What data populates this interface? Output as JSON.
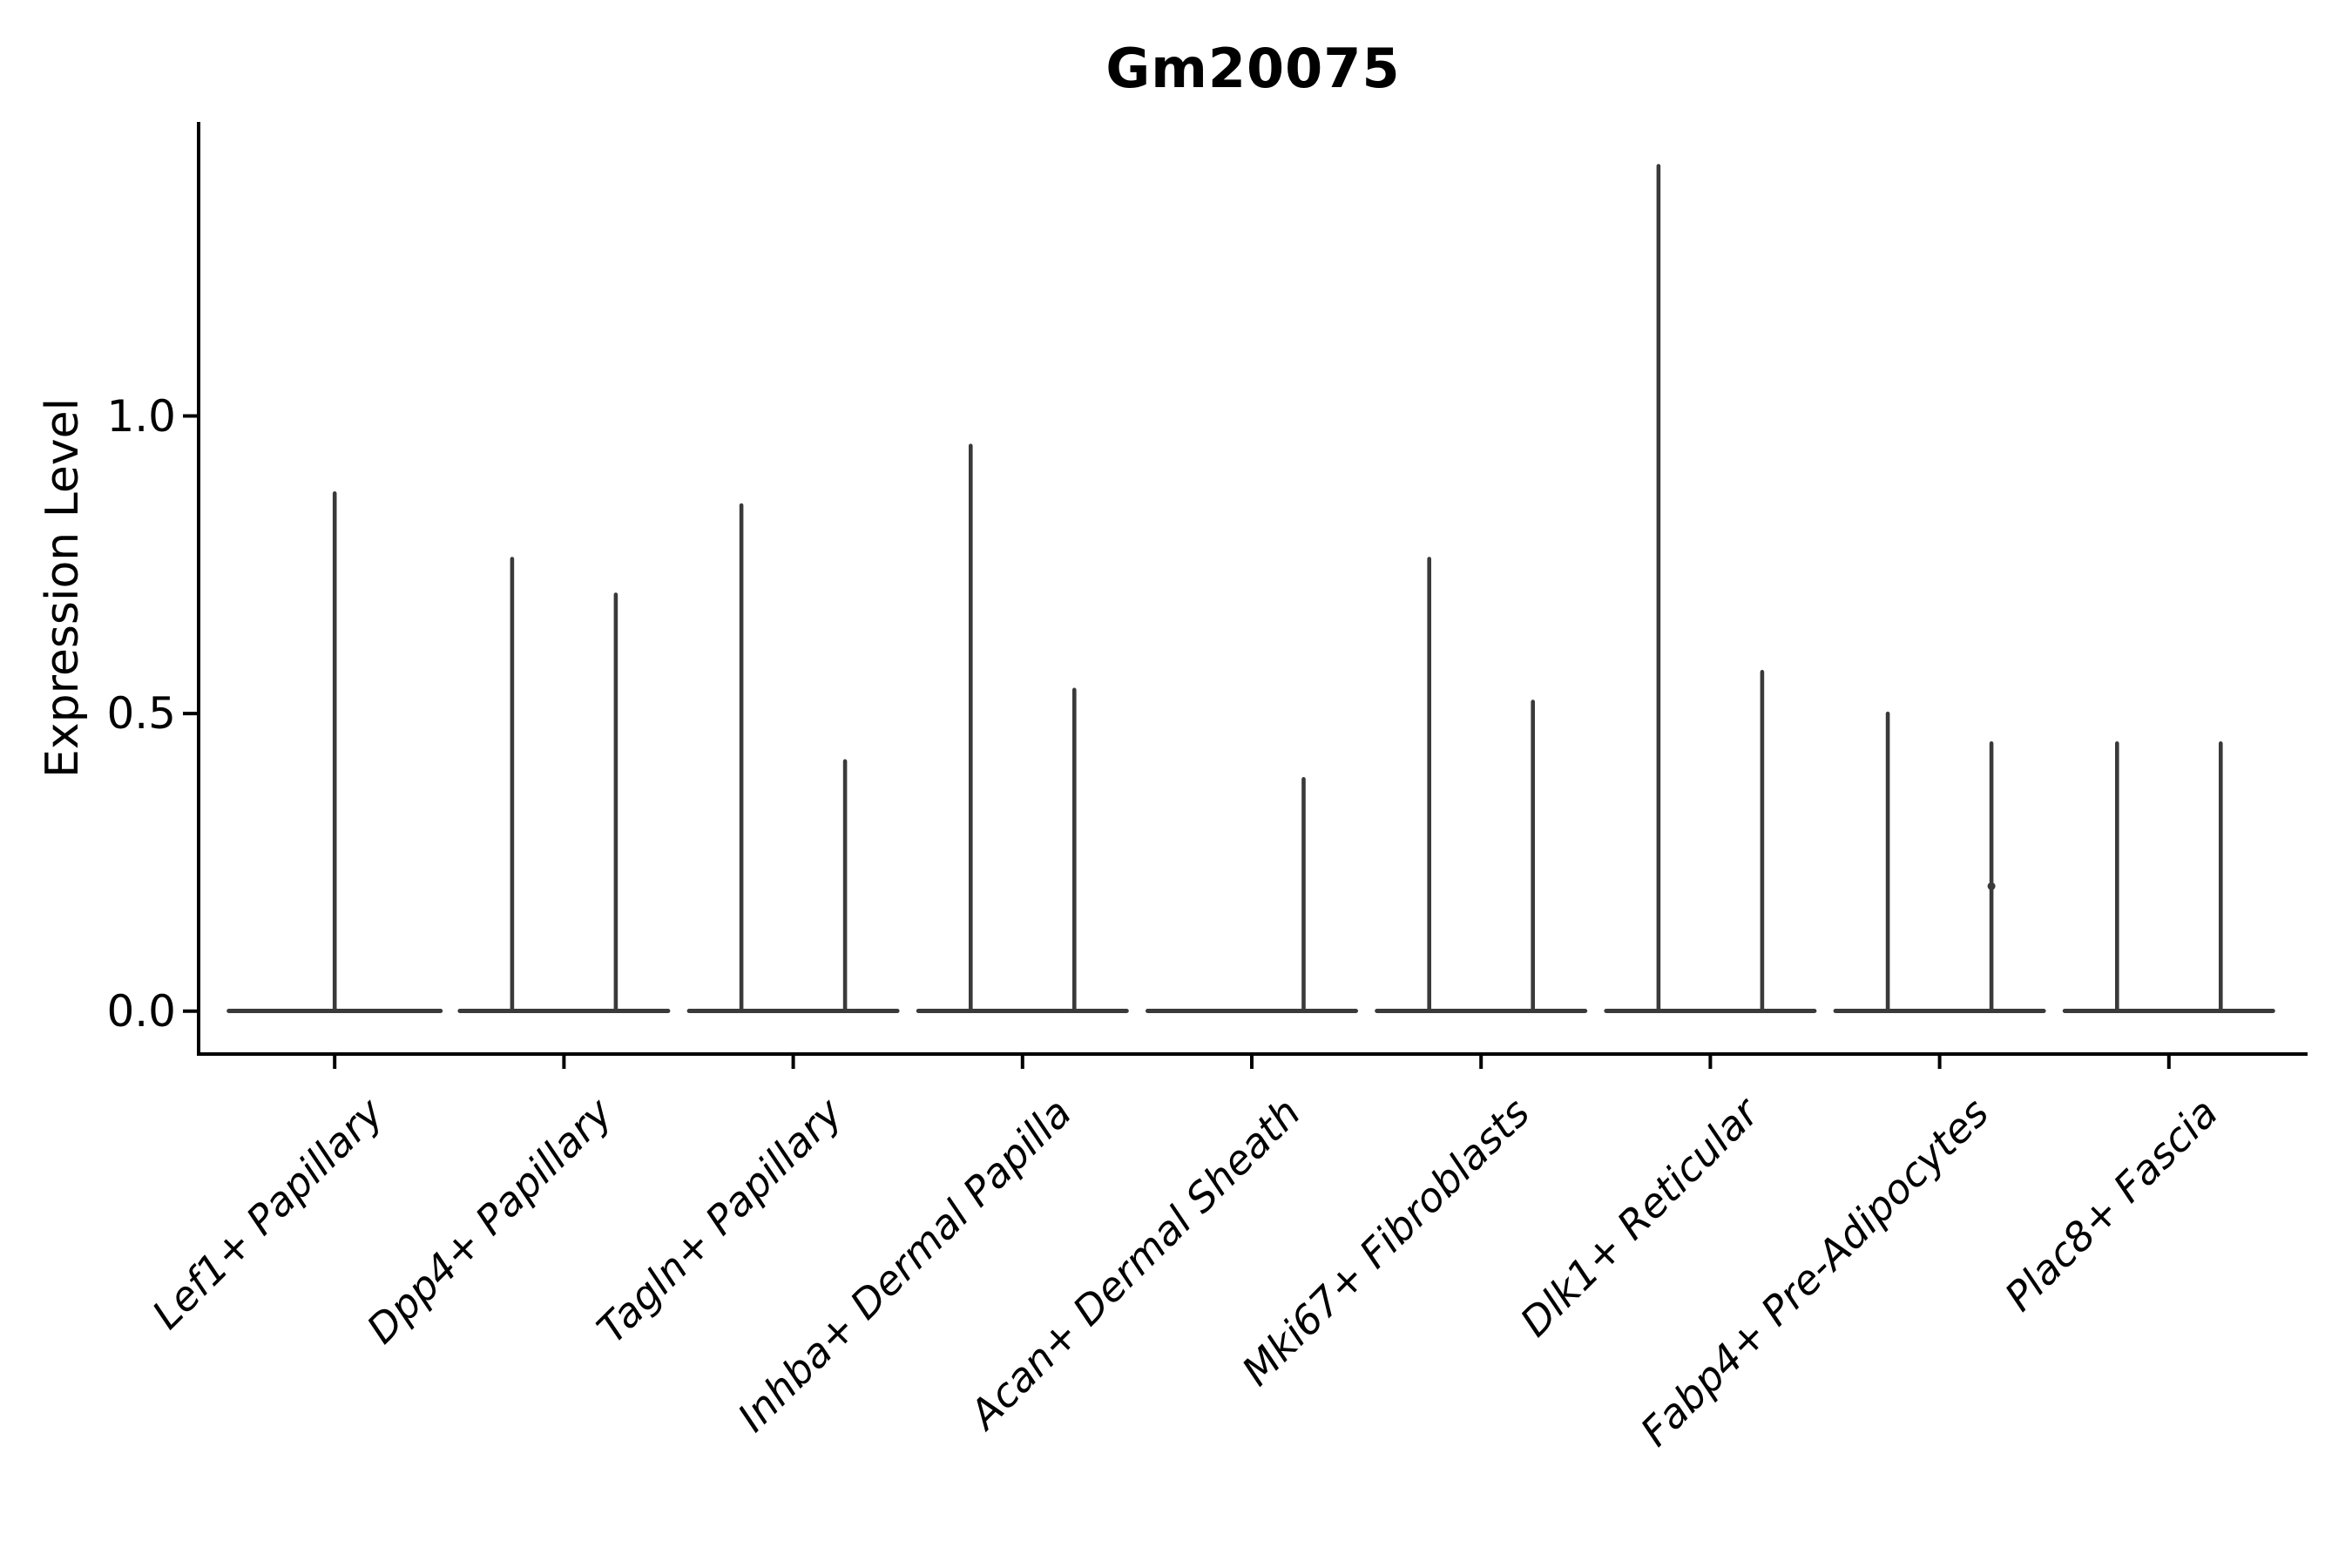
{
  "title": "Gm20075",
  "colors": {
    "axis": "#000000",
    "violin_stroke": "#3a3a3a",
    "background": "#ffffff"
  },
  "chart_data": {
    "type": "violin",
    "title": "Gm20075",
    "ylabel": "Expression Level",
    "xlabel": "",
    "grid": false,
    "legend": "none",
    "ylim": [
      -0.072,
      1.494
    ],
    "yticks": [
      0.0,
      0.5,
      1.0
    ],
    "ytick_labels": [
      "0.0",
      "0.5",
      "1.0"
    ],
    "categories": [
      "Lef1+ Papillary",
      "Dpp4+ Papillary",
      "Tagln+ Papillary",
      "Inhba+ Dermal Papilla",
      "Acan+ Dermal Sheath",
      "Mki67+ Fibroblasts",
      "Dlk1+ Reticular",
      "Fabp4+ Pre-Adipocytes",
      "Plac8+ Fascia"
    ],
    "note": "Each violin is spike-shaped: almost all density sits at expression 0 (wide flat base) with a thin vertical spike up to the maximum expressed value. Categories with two violins show two side-by-side groups; Lef1+ Papillary has a single full-width violin; the first Acan+ Dermal Sheath violin is entirely flat at 0.",
    "violins": [
      {
        "category": "Lef1+ Papillary",
        "groups": [
          {
            "max": 0.87
          }
        ]
      },
      {
        "category": "Dpp4+ Papillary",
        "groups": [
          {
            "max": 0.76
          },
          {
            "max": 0.7
          }
        ]
      },
      {
        "category": "Tagln+ Papillary",
        "groups": [
          {
            "max": 0.85
          },
          {
            "max": 0.42
          }
        ]
      },
      {
        "category": "Inhba+ Dermal Papilla",
        "groups": [
          {
            "max": 0.95
          },
          {
            "max": 0.54
          }
        ]
      },
      {
        "category": "Acan+ Dermal Sheath",
        "groups": [
          {
            "max": 0.0
          },
          {
            "max": 0.39
          }
        ]
      },
      {
        "category": "Mki67+ Fibroblasts",
        "groups": [
          {
            "max": 0.76
          },
          {
            "max": 0.52
          }
        ]
      },
      {
        "category": "Dlk1+ Reticular",
        "groups": [
          {
            "max": 1.42
          },
          {
            "max": 0.57
          }
        ]
      },
      {
        "category": "Fabp4+ Pre-Adipocytes",
        "groups": [
          {
            "max": 0.5
          },
          {
            "max": 0.45
          }
        ]
      },
      {
        "category": "Plac8+ Fascia",
        "groups": [
          {
            "max": 0.45
          },
          {
            "max": 0.45
          }
        ]
      }
    ],
    "annotations": [
      {
        "type": "point",
        "category_index": 7,
        "group_index": 1,
        "value": 0.21
      }
    ]
  }
}
